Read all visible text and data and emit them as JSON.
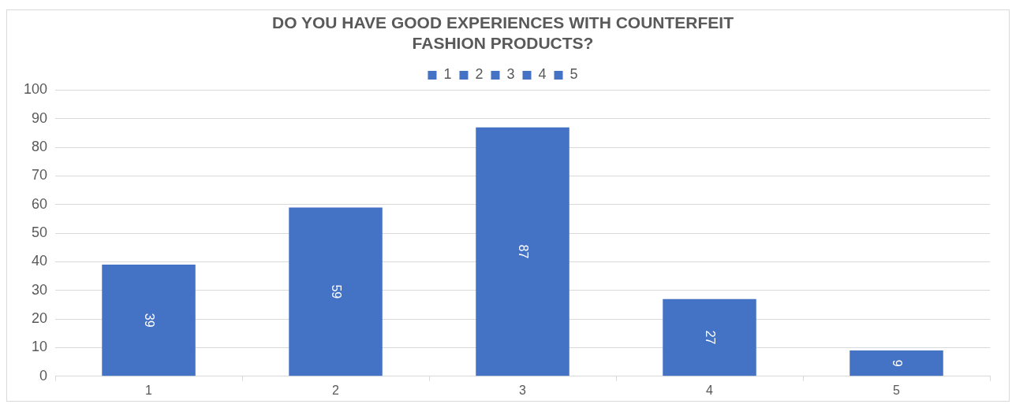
{
  "chart_data": {
    "type": "bar",
    "title": "DO YOU HAVE GOOD EXPERIENCES WITH COUNTERFEIT\nFASHION PRODUCTS?",
    "categories": [
      "1",
      "2",
      "3",
      "4",
      "5"
    ],
    "series": [
      {
        "name": "1",
        "color": "#4472c4",
        "values": [
          39,
          null,
          null,
          null,
          null
        ]
      },
      {
        "name": "2",
        "color": "#4472c4",
        "values": [
          null,
          59,
          null,
          null,
          null
        ]
      },
      {
        "name": "3",
        "color": "#4472c4",
        "values": [
          null,
          null,
          87,
          null,
          null
        ]
      },
      {
        "name": "4",
        "color": "#4472c4",
        "values": [
          null,
          null,
          null,
          27,
          null
        ]
      },
      {
        "name": "5",
        "color": "#4472c4",
        "values": [
          null,
          null,
          null,
          null,
          9
        ]
      }
    ],
    "stacked": true,
    "ylim": [
      0,
      100
    ],
    "yticks": [
      0,
      10,
      20,
      30,
      40,
      50,
      60,
      70,
      80,
      90,
      100
    ],
    "grid": "y",
    "legend": "top",
    "data_labels": true
  }
}
